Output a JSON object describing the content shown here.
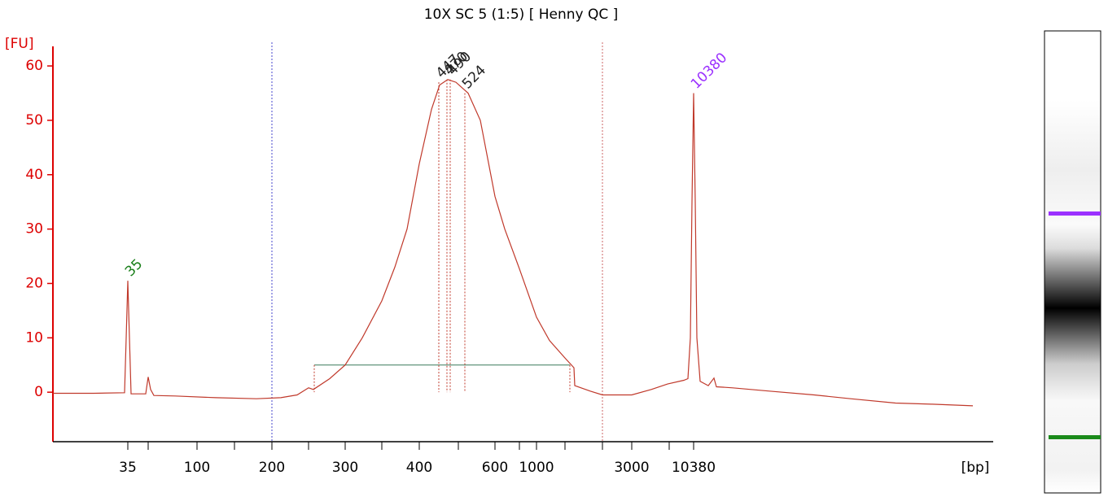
{
  "chart_data": {
    "type": "line",
    "title": "10X SC 5 (1:5)  [ Henny QC ]",
    "y_label": "[FU]",
    "x_label": "[bp]",
    "xlim": [
      0,
      113
    ],
    "ylim": [
      -9.1,
      63.6
    ],
    "yticks": [
      0,
      10,
      20,
      30,
      40,
      50,
      60
    ],
    "xticks": [
      {
        "value": 9.2,
        "label": "35"
      },
      {
        "value": 17.7,
        "label": "100"
      },
      {
        "value": 26.9,
        "label": "200"
      },
      {
        "value": 35.9,
        "label": "300"
      },
      {
        "value": 45.0,
        "label": "400"
      },
      {
        "value": 54.3,
        "label": "600"
      },
      {
        "value": 59.4,
        "label": "1000"
      },
      {
        "value": 71.1,
        "label": "3000"
      },
      {
        "value": 78.7,
        "label": "10380"
      }
    ],
    "xminorticks": [
      11.7,
      22.3,
      31.4,
      40.4,
      49.8,
      57.3,
      62.9,
      67.5,
      75.7
    ],
    "markers": [
      26.9,
      67.5
    ],
    "region": {
      "x": [
        32.1,
        63.5
      ],
      "y": 5
    },
    "series": [
      {
        "color": "#c0392b",
        "x": [
          0,
          5,
          8.8,
          9.0,
          9.2,
          9.4,
          9.6,
          11.4,
          11.7,
          12.0,
          12.4,
          15,
          20,
          25,
          28,
          30,
          31.4,
          32,
          34,
          35.9,
          38,
          40.4,
          42,
          43.5,
          45,
          46.5,
          47.5,
          48.5,
          49.5,
          51,
          52.5,
          54.3,
          55.5,
          57.3,
          59.4,
          61,
          62.9,
          64,
          64.1,
          66,
          67.5,
          69,
          71.1,
          73.5,
          75.5,
          77.5,
          78.0,
          78.3,
          78.5,
          78.7,
          78.9,
          79.1,
          79.5,
          80.5,
          81.2,
          81.5,
          83.5,
          88,
          93.5,
          98,
          103.5,
          108,
          113
        ],
        "values": [
          -0.2,
          -0.2,
          -0.1,
          10,
          20.5,
          10,
          -0.3,
          -0.3,
          2.8,
          0.5,
          -0.6,
          -0.7,
          -1.0,
          -1.2,
          -1.0,
          -0.5,
          0.8,
          0.5,
          2.5,
          5,
          10,
          16.8,
          23,
          30,
          42,
          52,
          56.5,
          57.5,
          57,
          55,
          50,
          36,
          30,
          22.7,
          13.8,
          9.5,
          6.3,
          4.5,
          1.2,
          0.2,
          -0.5,
          -0.5,
          -0.5,
          0.5,
          1.5,
          2.2,
          2.5,
          10,
          35,
          55,
          35,
          10,
          2,
          1.2,
          2.6,
          1,
          0.8,
          0.2,
          -0.5,
          -1.2,
          -2,
          -2.2,
          -2.5
        ]
      }
    ],
    "peak_labels": [
      {
        "text": "35",
        "x": 9.2,
        "y": 20.5,
        "color": "#1a7f1a"
      },
      {
        "text": "447",
        "x": 47.4,
        "y": 57,
        "color": "#222222"
      },
      {
        "text": "470",
        "x": 48.4,
        "y": 57.5,
        "color": "#222222"
      },
      {
        "text": "490",
        "x": 48.8,
        "y": 57.5,
        "color": "#222222"
      },
      {
        "text": "524",
        "x": 50.6,
        "y": 55,
        "color": "#222222"
      },
      {
        "text": "10380",
        "x": 78.7,
        "y": 55,
        "color": "#9b30ff"
      }
    ]
  }
}
